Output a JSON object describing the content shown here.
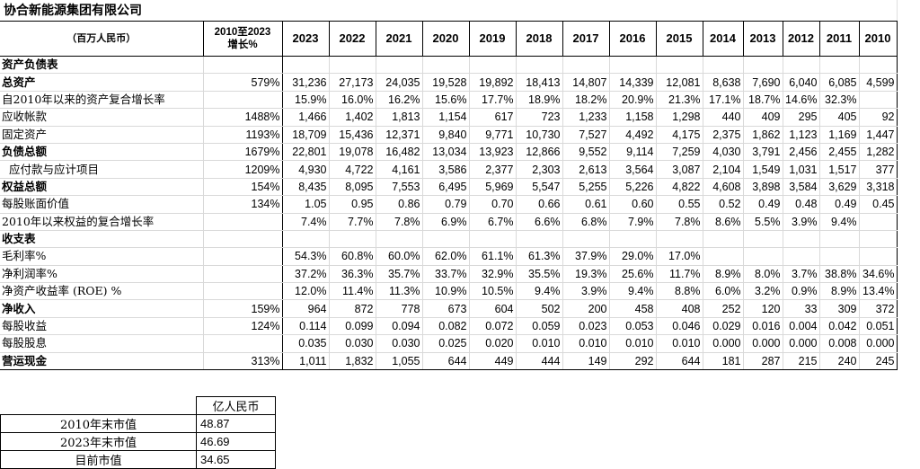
{
  "title": "协合新能源集团有限公司",
  "header": {
    "unit": "（百万人民币）",
    "growth": "2010至2023\n增长%",
    "years": [
      "2023",
      "2022",
      "2021",
      "2020",
      "2019",
      "2018",
      "2017",
      "2016",
      "2015",
      "2014",
      "2013",
      "2012",
      "2011",
      "2010"
    ]
  },
  "rows": [
    {
      "label": "资产负债表",
      "bold": true,
      "cagr": "",
      "values": [
        "",
        "",
        "",
        "",
        "",
        "",
        "",
        "",
        "",
        "",
        "",
        "",
        "",
        ""
      ]
    },
    {
      "label": "总资产",
      "bold": true,
      "cagr": "579%",
      "values": [
        "31,236",
        "27,173",
        "24,035",
        "19,528",
        "19,892",
        "18,413",
        "14,807",
        "14,339",
        "12,081",
        "8,638",
        "7,690",
        "6,040",
        "6,085",
        "4,599"
      ]
    },
    {
      "label": "自2010年以来的资产复合增长率",
      "bold": false,
      "cagr": "",
      "values": [
        "15.9%",
        "16.0%",
        "16.2%",
        "15.6%",
        "17.7%",
        "18.9%",
        "18.2%",
        "20.9%",
        "21.3%",
        "17.1%",
        "18.7%",
        "14.6%",
        "32.3%",
        ""
      ]
    },
    {
      "label": "应收帐款",
      "bold": false,
      "cagr": "1488%",
      "values": [
        "1,466",
        "1,402",
        "1,813",
        "1,154",
        "617",
        "723",
        "1,233",
        "1,158",
        "1,298",
        "440",
        "409",
        "295",
        "405",
        "92"
      ]
    },
    {
      "label": "固定资产",
      "bold": false,
      "cagr": "1193%",
      "values": [
        "18,709",
        "15,436",
        "12,371",
        "9,840",
        "9,771",
        "10,730",
        "7,527",
        "4,492",
        "4,175",
        "2,375",
        "1,862",
        "1,123",
        "1,169",
        "1,447"
      ]
    },
    {
      "label": "负债总额",
      "bold": true,
      "cagr": "1679%",
      "values": [
        "22,801",
        "19,078",
        "16,482",
        "13,034",
        "13,923",
        "12,866",
        "9,552",
        "9,114",
        "7,259",
        "4,030",
        "3,791",
        "2,456",
        "2,455",
        "1,282"
      ]
    },
    {
      "label": "  应付款与应计项目",
      "bold": false,
      "cagr": "1209%",
      "values": [
        "4,930",
        "4,722",
        "4,161",
        "3,586",
        "2,377",
        "2,303",
        "2,613",
        "3,564",
        "3,087",
        "2,104",
        "1,549",
        "1,031",
        "1,517",
        "377"
      ]
    },
    {
      "label": "权益总额",
      "bold": true,
      "cagr": "154%",
      "values": [
        "8,435",
        "8,095",
        "7,553",
        "6,495",
        "5,969",
        "5,547",
        "5,255",
        "5,226",
        "4,822",
        "4,608",
        "3,898",
        "3,584",
        "3,629",
        "3,318"
      ]
    },
    {
      "label": "每股账面价值",
      "bold": false,
      "cagr": "134%",
      "values": [
        "1.05",
        "0.95",
        "0.86",
        "0.79",
        "0.70",
        "0.66",
        "0.61",
        "0.60",
        "0.55",
        "0.52",
        "0.49",
        "0.48",
        "0.49",
        "0.45"
      ]
    },
    {
      "label": "2010年以来权益的复合增长率",
      "bold": false,
      "cagr": "",
      "values": [
        "7.4%",
        "7.7%",
        "7.8%",
        "6.9%",
        "6.7%",
        "6.6%",
        "6.8%",
        "7.9%",
        "7.8%",
        "8.6%",
        "5.5%",
        "3.9%",
        "9.4%",
        ""
      ]
    },
    {
      "label": "收支表",
      "bold": true,
      "cagr": "",
      "values": [
        "",
        "",
        "",
        "",
        "",
        "",
        "",
        "",
        "",
        "",
        "",
        "",
        "",
        ""
      ]
    },
    {
      "label": "毛利率%",
      "bold": false,
      "cagr": "",
      "values": [
        "54.3%",
        "60.8%",
        "60.0%",
        "62.0%",
        "61.1%",
        "61.3%",
        "37.9%",
        "29.0%",
        "17.0%",
        "",
        "",
        "",
        "",
        ""
      ]
    },
    {
      "label": "净利润率%",
      "bold": false,
      "cagr": "",
      "values": [
        "37.2%",
        "36.3%",
        "35.7%",
        "33.7%",
        "32.9%",
        "35.5%",
        "19.3%",
        "25.6%",
        "11.7%",
        "8.9%",
        "8.0%",
        "3.7%",
        "38.8%",
        "34.6%"
      ]
    },
    {
      "label": "净资产收益率 (ROE) %",
      "bold": false,
      "cagr": "",
      "values": [
        "12.0%",
        "11.4%",
        "11.3%",
        "10.9%",
        "10.5%",
        "9.4%",
        "3.9%",
        "9.4%",
        "8.8%",
        "6.0%",
        "3.2%",
        "0.9%",
        "8.9%",
        "13.4%"
      ]
    },
    {
      "label": "净收入",
      "bold": true,
      "cagr": "159%",
      "values": [
        "964",
        "872",
        "778",
        "673",
        "604",
        "502",
        "200",
        "458",
        "408",
        "252",
        "120",
        "33",
        "309",
        "372"
      ]
    },
    {
      "label": "每股收益",
      "bold": false,
      "cagr": "124%",
      "values": [
        "0.114",
        "0.099",
        "0.094",
        "0.082",
        "0.072",
        "0.059",
        "0.023",
        "0.053",
        "0.046",
        "0.029",
        "0.016",
        "0.004",
        "0.042",
        "0.051"
      ]
    },
    {
      "label": "每股股息",
      "bold": false,
      "cagr": "",
      "values": [
        "0.035",
        "0.030",
        "0.030",
        "0.025",
        "0.020",
        "0.010",
        "0.010",
        "0.010",
        "0.010",
        "0.000",
        "0.000",
        "0.000",
        "0.008",
        "0.000"
      ]
    },
    {
      "label": "营运现金",
      "bold": true,
      "cagr": "313%",
      "values": [
        "1,011",
        "1,832",
        "1,055",
        "644",
        "449",
        "444",
        "149",
        "292",
        "644",
        "181",
        "287",
        "215",
        "240",
        "245"
      ]
    }
  ],
  "market": {
    "unit": "亿人民币",
    "rows": [
      {
        "label": "2010年末市值",
        "value": "48.87"
      },
      {
        "label": "2023年末市值",
        "value": "46.69"
      },
      {
        "label": "目前市值",
        "value": "34.65"
      }
    ]
  }
}
